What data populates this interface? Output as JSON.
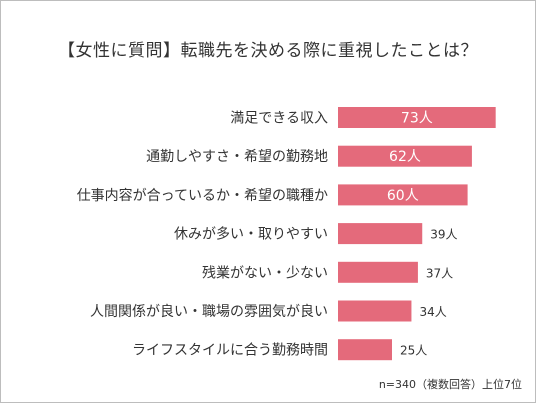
{
  "chart_data": {
    "type": "bar",
    "orientation": "horizontal",
    "title": "【女性に質問】転職先を決める際に重視したことは？",
    "categories": [
      "満足できる収入",
      "通勤しやすさ・希望の勤務地",
      "仕事内容が合っているか・希望の職種か",
      "休みが多い・取りやすい",
      "残業がない・少ない",
      "人間関係が良い・職場の雰囲気が良い",
      "ライフスタイルに合う勤務時間"
    ],
    "values": [
      73,
      62,
      60,
      39,
      37,
      34,
      25
    ],
    "value_labels": [
      "73人",
      "62人",
      "60人",
      "39人",
      "37人",
      "34人",
      "25人"
    ],
    "bar_color": "#e46a7b",
    "note": "n=340（複数回答）上位7位"
  }
}
